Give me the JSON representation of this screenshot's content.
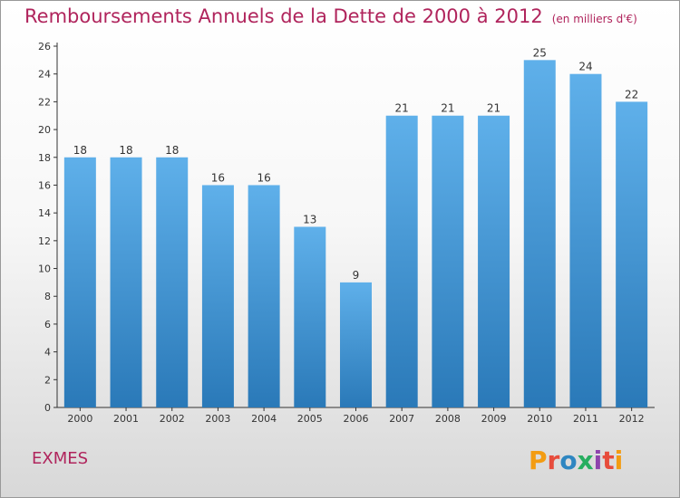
{
  "title": {
    "main": "Remboursements Annuels de la Dette de 2000 à 2012",
    "unit": "(en milliers d'€)"
  },
  "footer": {
    "place": "EXMES",
    "brand": "Proxiti"
  },
  "colors": {
    "title": "#b0245c",
    "bar_top": "#5fb0ea",
    "bar_bottom": "#2a79b8",
    "brand_letters": [
      "#f39c12",
      "#e74c3c",
      "#2e86c1",
      "#27ae60",
      "#8e44ad",
      "#e74c3c",
      "#f39c12"
    ]
  },
  "chart_data": {
    "type": "bar",
    "categories": [
      "2000",
      "2001",
      "2002",
      "2003",
      "2004",
      "2005",
      "2006",
      "2007",
      "2008",
      "2009",
      "2010",
      "2011",
      "2012"
    ],
    "values": [
      18,
      18,
      18,
      16,
      16,
      13,
      9,
      21,
      21,
      21,
      25,
      24,
      22
    ],
    "ylim": [
      0,
      26
    ],
    "yticks": [
      0,
      2,
      4,
      6,
      8,
      10,
      12,
      14,
      16,
      18,
      20,
      22,
      24,
      26
    ],
    "grid": false,
    "data_labels": true
  }
}
